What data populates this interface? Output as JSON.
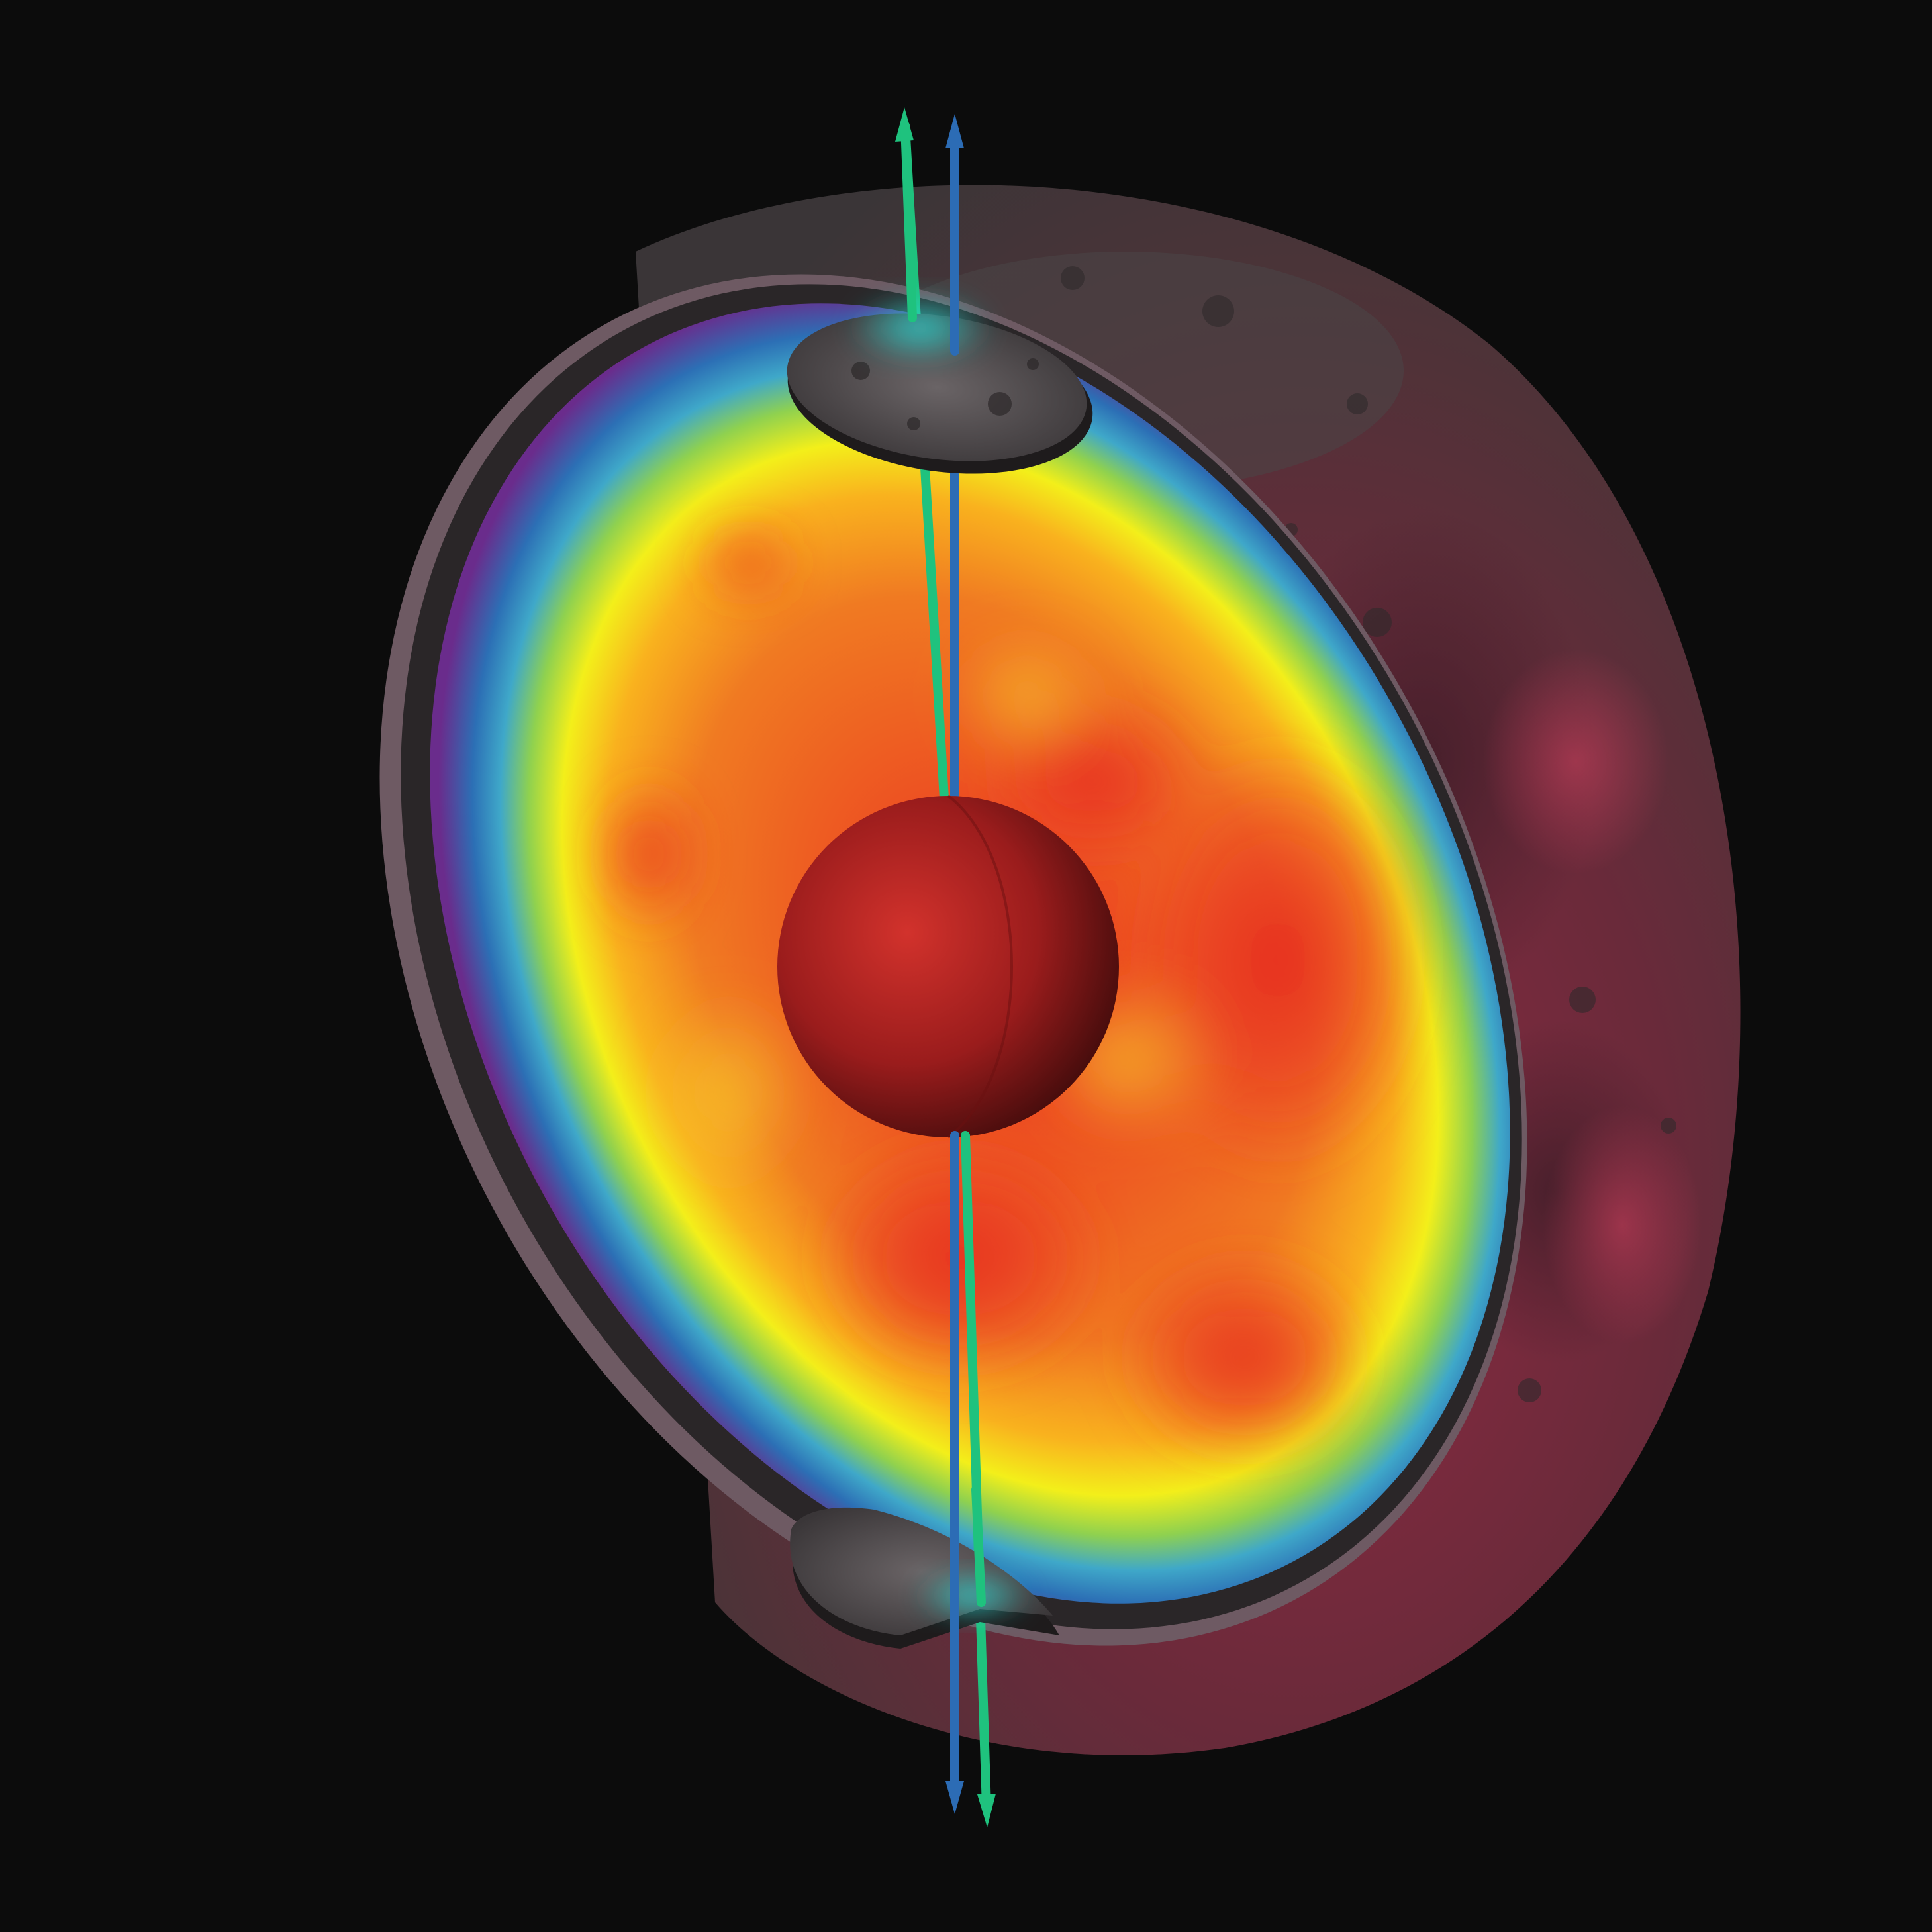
{
  "scene": {
    "background_color": "#0c0c0c",
    "moon_surface_colors": [
      "#3a3638",
      "#5a2f3a",
      "#7a2a3c",
      "#b3344e"
    ],
    "mantle_colormap": [
      "#6a2c8c",
      "#2c6fb5",
      "#3fa8c9",
      "#8fd14f",
      "#f3ef1a",
      "#f9b21e",
      "#f07a22",
      "#ea2d22"
    ],
    "core_colors": [
      "#d2322c",
      "#7a1415",
      "#2a0808"
    ],
    "axis_colors": {
      "green_axis": "#1fc27e",
      "blue_axis": "#2c6cb5"
    },
    "polar_spot_color": "#2fd6d0",
    "icons": [
      "moon-cutaway",
      "mantle-heat-map",
      "core-sphere",
      "rotation-axis-arrow",
      "polar-disk"
    ]
  }
}
